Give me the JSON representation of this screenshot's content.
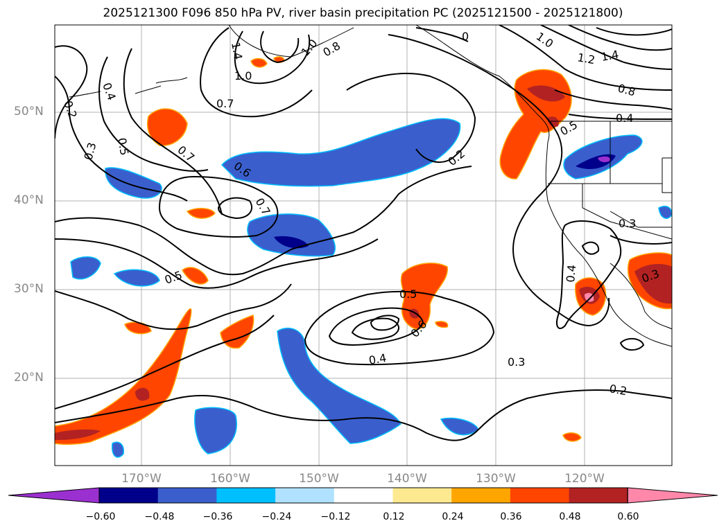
{
  "title": "2025121300 F096 850 hPa PV, river basin precipitation PC (2025121500 - 2025121800)",
  "map": {
    "lat_ticks": [
      "50°N",
      "40°N",
      "30°N",
      "20°N"
    ],
    "lon_ticks": [
      "170°W",
      "160°W",
      "150°W",
      "140°W",
      "130°W",
      "120°W"
    ],
    "contour_labels": [
      "0.4",
      "0.2",
      "0.3",
      "0.5",
      "0.7",
      "0.6",
      "0.7",
      "0.5",
      "1.0",
      "0.7",
      "0.8",
      "1.4",
      "1.0",
      "0",
      "1.0",
      "1.2",
      "1.4",
      "0.8",
      "0.2",
      "0.4",
      "0.5",
      "0.3",
      "0.4",
      "0.3",
      "0.5",
      "0.6",
      "0.4",
      "0.3",
      "0.2"
    ]
  },
  "colorbar": {
    "labels": [
      "−0.60",
      "−0.48",
      "−0.36",
      "−0.24",
      "−0.12",
      "0.12",
      "0.24",
      "0.36",
      "0.48",
      "0.60"
    ],
    "colors": [
      "#9b30d0",
      "#00008b",
      "#3a5fcd",
      "#00bfff",
      "#b0e2ff",
      "#ffffff",
      "#fde98f",
      "#ffa500",
      "#ff4500",
      "#b22222",
      "#ff88aa",
      "#ff88aa"
    ]
  }
}
